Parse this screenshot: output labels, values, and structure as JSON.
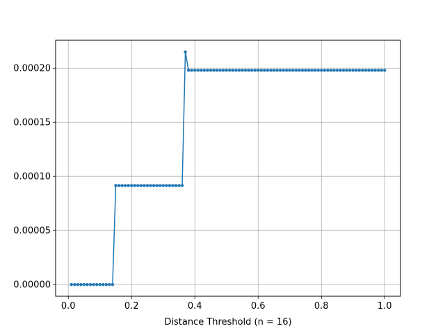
{
  "chart_data": {
    "type": "line",
    "title": "",
    "xlabel": "Distance Threshold (n = 16)",
    "ylabel": "",
    "xlim": [
      -0.04,
      1.05
    ],
    "ylim": [
      -1.08e-05,
      0.0002258
    ],
    "grid": true,
    "x_ticks": [
      0.0,
      0.2,
      0.4,
      0.6,
      0.8,
      1.0
    ],
    "x_tick_labels": [
      "0.0",
      "0.2",
      "0.4",
      "0.6",
      "0.8",
      "1.0"
    ],
    "y_ticks": [
      0.0,
      5e-05,
      0.0001,
      0.00015,
      0.0002
    ],
    "y_tick_labels": [
      "0.00000",
      "0.00005",
      "0.00010",
      "0.00015",
      "0.00020"
    ],
    "color": "#1f77b4",
    "series": [
      {
        "x": [
          0.01,
          0.02,
          0.03,
          0.04,
          0.05,
          0.06,
          0.07,
          0.08,
          0.09,
          0.1,
          0.11,
          0.12,
          0.13,
          0.14,
          0.15,
          0.16,
          0.17,
          0.18,
          0.19,
          0.2,
          0.21,
          0.22,
          0.23,
          0.24,
          0.25,
          0.26,
          0.27,
          0.28,
          0.29,
          0.3,
          0.31,
          0.32,
          0.33,
          0.34,
          0.35,
          0.36,
          0.37,
          0.38,
          0.39,
          0.4,
          0.41,
          0.42,
          0.43,
          0.44,
          0.45,
          0.46,
          0.47,
          0.48,
          0.49,
          0.5,
          0.51,
          0.52,
          0.53,
          0.54,
          0.55,
          0.56,
          0.57,
          0.58,
          0.59,
          0.6,
          0.61,
          0.62,
          0.63,
          0.64,
          0.65,
          0.66,
          0.67,
          0.68,
          0.69,
          0.7,
          0.71,
          0.72,
          0.73,
          0.74,
          0.75,
          0.76,
          0.77,
          0.78,
          0.79,
          0.8,
          0.81,
          0.82,
          0.83,
          0.84,
          0.85,
          0.86,
          0.87,
          0.88,
          0.89,
          0.9,
          0.91,
          0.92,
          0.93,
          0.94,
          0.95,
          0.96,
          0.97,
          0.98,
          0.99,
          1.0
        ],
        "y": [
          0,
          0,
          0,
          0,
          0,
          0,
          0,
          0,
          0,
          0,
          0,
          0,
          0,
          0,
          9.15e-05,
          9.15e-05,
          9.15e-05,
          9.15e-05,
          9.15e-05,
          9.15e-05,
          9.15e-05,
          9.15e-05,
          9.15e-05,
          9.15e-05,
          9.15e-05,
          9.15e-05,
          9.15e-05,
          9.15e-05,
          9.15e-05,
          9.15e-05,
          9.15e-05,
          9.15e-05,
          9.15e-05,
          9.15e-05,
          9.15e-05,
          9.15e-05,
          0.000215,
          0.000198,
          0.000198,
          0.000198,
          0.000198,
          0.000198,
          0.000198,
          0.000198,
          0.000198,
          0.000198,
          0.000198,
          0.000198,
          0.000198,
          0.000198,
          0.000198,
          0.000198,
          0.000198,
          0.000198,
          0.000198,
          0.000198,
          0.000198,
          0.000198,
          0.000198,
          0.000198,
          0.000198,
          0.000198,
          0.000198,
          0.000198,
          0.000198,
          0.000198,
          0.000198,
          0.000198,
          0.000198,
          0.000198,
          0.000198,
          0.000198,
          0.000198,
          0.000198,
          0.000198,
          0.000198,
          0.000198,
          0.000198,
          0.000198,
          0.000198,
          0.000198,
          0.000198,
          0.000198,
          0.000198,
          0.000198,
          0.000198,
          0.000198,
          0.000198,
          0.000198,
          0.000198,
          0.000198,
          0.000198,
          0.000198,
          0.000198,
          0.000198,
          0.000198,
          0.000198,
          0.000198,
          0.000198,
          0.000198
        ]
      }
    ]
  }
}
